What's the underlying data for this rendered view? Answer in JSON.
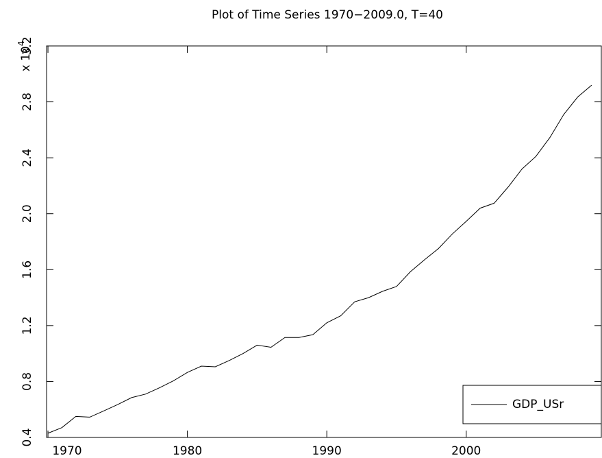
{
  "chart_data": {
    "type": "line",
    "title": "Plot of Time Series 1970−2009.0, T=40",
    "y_multiplier": {
      "base": "x 10",
      "exponent": "4"
    },
    "x": [
      1970,
      1971,
      1972,
      1973,
      1974,
      1975,
      1976,
      1977,
      1978,
      1979,
      1980,
      1981,
      1982,
      1983,
      1984,
      1985,
      1986,
      1987,
      1988,
      1989,
      1990,
      1991,
      1992,
      1993,
      1994,
      1995,
      1996,
      1997,
      1998,
      1999,
      2000,
      2001,
      2002,
      2003,
      2004,
      2005,
      2006,
      2007,
      2008,
      2009
    ],
    "series": [
      {
        "name": "GDP_USr",
        "color": "#000000",
        "values": [
          0.43,
          0.47,
          0.55,
          0.545,
          0.59,
          0.635,
          0.685,
          0.71,
          0.755,
          0.805,
          0.865,
          0.91,
          0.905,
          0.95,
          1.0,
          1.06,
          1.045,
          1.115,
          1.115,
          1.135,
          1.22,
          1.27,
          1.37,
          1.4,
          1.445,
          1.48,
          1.585,
          1.67,
          1.75,
          1.855,
          1.945,
          2.04,
          2.075,
          2.19,
          2.32,
          2.41,
          2.545,
          2.71,
          2.835,
          2.92
        ]
      }
    ],
    "xlim": [
      1969.9,
      2009.69
    ],
    "xticks": [
      1970,
      1980,
      1990,
      2000
    ],
    "ylim": [
      0.4,
      3.2
    ],
    "yticks": [
      0.4,
      0.8,
      1.2,
      1.6,
      {
        "value": 2,
        "label": "2.0"
      },
      2.4,
      2.8,
      3.2
    ],
    "grid": false,
    "legend": "lower right"
  }
}
